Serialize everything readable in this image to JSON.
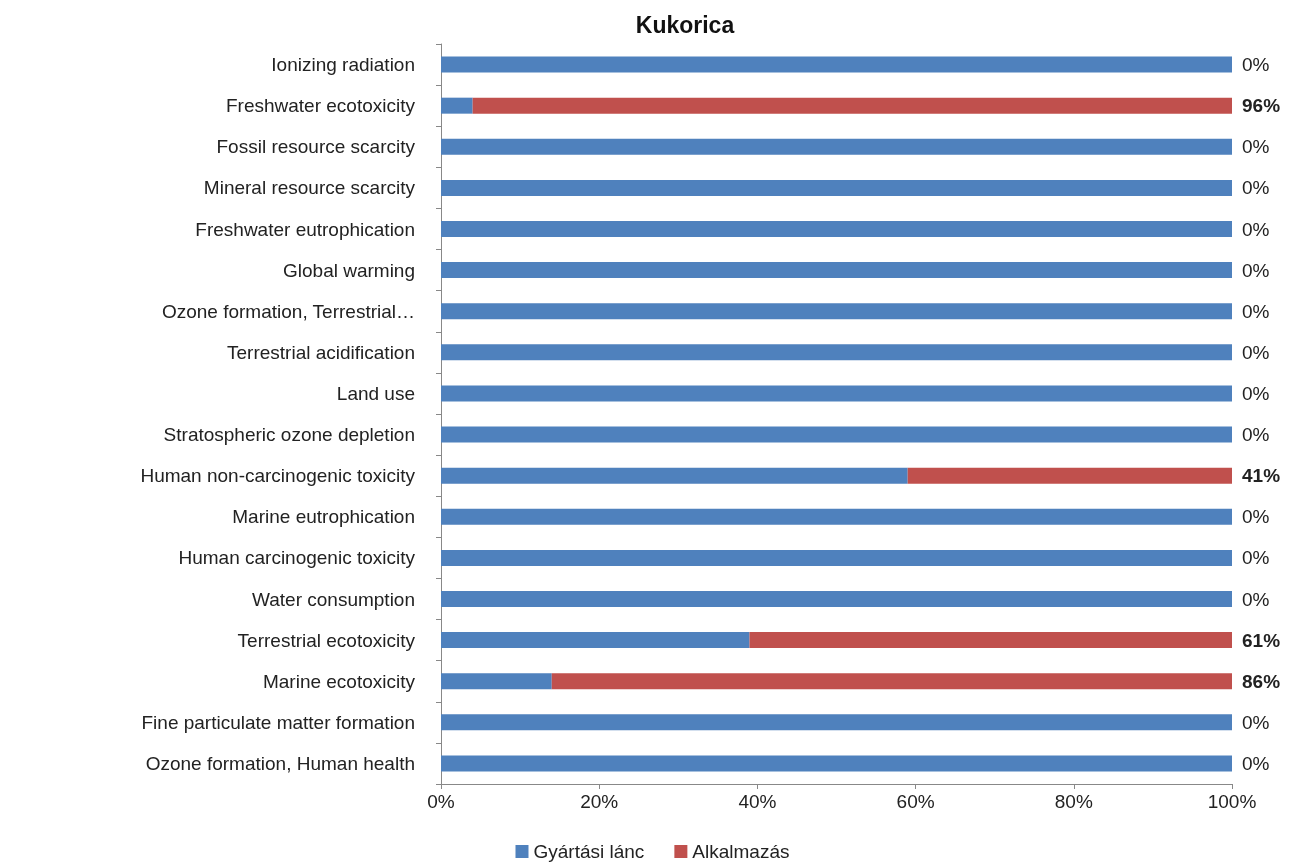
{
  "chart_data": {
    "type": "bar",
    "title": "Kukorica",
    "orientation": "horizontal",
    "stacked": true,
    "grid": false,
    "legend": "bottom",
    "categories": [
      "Ionizing radiation",
      "Freshwater ecotoxicity",
      "Fossil resource scarcity",
      "Mineral resource scarcity",
      "Freshwater eutrophication",
      "Global warming",
      "Ozone formation, Terrestrial…",
      "Terrestrial acidification",
      "Land use",
      "Stratospheric ozone depletion",
      "Human non-carcinogenic toxicity",
      "Marine eutrophication",
      "Human carcinogenic toxicity",
      "Water consumption",
      "Terrestrial ecotoxicity",
      "Marine ecotoxicity",
      "Fine particulate matter formation",
      "Ozone formation, Human health"
    ],
    "xlim": [
      0,
      100
    ],
    "xticks": [
      {
        "value": 0,
        "label": "0%"
      },
      {
        "value": 20,
        "label": "20%"
      },
      {
        "value": 40,
        "label": "40%"
      },
      {
        "value": 60,
        "label": "60%"
      },
      {
        "value": 80,
        "label": "80%"
      },
      {
        "value": 100,
        "label": "100%"
      }
    ],
    "series": [
      {
        "name": "Gyártási lánc",
        "color": "#4f81bd",
        "values": [
          100,
          4,
          100,
          100,
          100,
          100,
          100,
          100,
          100,
          100,
          59,
          100,
          100,
          100,
          39,
          14,
          100,
          100
        ]
      },
      {
        "name": "Alkalmazás",
        "color": "#c0504d",
        "values": [
          0,
          96,
          0,
          0,
          0,
          0,
          0,
          0,
          0,
          0,
          41,
          0,
          0,
          0,
          61,
          86,
          0,
          0
        ],
        "value_labels": [
          "0%",
          "96%",
          "0%",
          "0%",
          "0%",
          "0%",
          "0%",
          "0%",
          "0%",
          "0%",
          "41%",
          "0%",
          "0%",
          "0%",
          "61%",
          "86%",
          "0%",
          "0%"
        ]
      }
    ]
  }
}
